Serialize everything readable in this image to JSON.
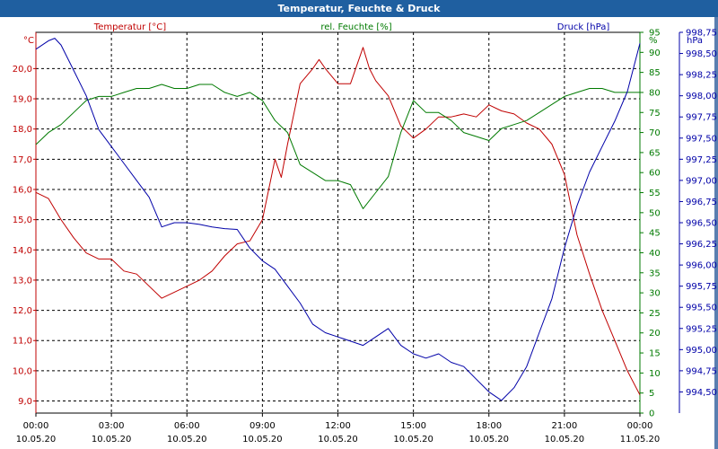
{
  "window": {
    "title": "Temperatur, Feuchte & Druck"
  },
  "colors": {
    "temperature": "#c00000",
    "humidity": "#007a00",
    "pressure": "#0000a8",
    "title_bar": "#1f5fa0",
    "grid": "#000000"
  },
  "chart_data": {
    "type": "line",
    "title": "Temperatur, Feuchte & Druck",
    "grid": true,
    "x_ticks": [
      {
        "time": "00:00",
        "date": "10.05.20"
      },
      {
        "time": "03:00",
        "date": "10.05.20"
      },
      {
        "time": "06:00",
        "date": "10.05.20"
      },
      {
        "time": "09:00",
        "date": "10.05.20"
      },
      {
        "time": "12:00",
        "date": "10.05.20"
      },
      {
        "time": "15:00",
        "date": "10.05.20"
      },
      {
        "time": "18:00",
        "date": "10.05.20"
      },
      {
        "time": "21:00",
        "date": "10.05.20"
      },
      {
        "time": "00:00",
        "date": "11.05.20"
      }
    ],
    "axes": {
      "left": {
        "unit": "°C",
        "label": "Temperatur [°C]",
        "range": [
          8.6,
          21.2
        ],
        "ticks": [
          "9,0",
          "10,0",
          "11,0",
          "12,0",
          "13,0",
          "14,0",
          "15,0",
          "16,0",
          "17,0",
          "18,0",
          "19,0",
          "20,0"
        ]
      },
      "middle": {
        "unit": "%",
        "label": "rel. Feuchte [%]",
        "range": [
          0,
          95
        ],
        "ticks": [
          "0",
          "5",
          "10",
          "15",
          "20",
          "25",
          "30",
          "35",
          "40",
          "45",
          "50",
          "55",
          "60",
          "65",
          "70",
          "75",
          "80",
          "85",
          "90",
          "95"
        ]
      },
      "right": {
        "unit": "hPa",
        "label": "Druck [hPa]",
        "range": [
          994.25,
          998.75
        ],
        "ticks": [
          "994,50",
          "994,75",
          "995,00",
          "995,25",
          "995,50",
          "995,75",
          "996,00",
          "996,25",
          "996,50",
          "996,75",
          "997,00",
          "997,25",
          "997,50",
          "997,75",
          "998,00",
          "998,25",
          "998,50",
          "998,75"
        ]
      }
    },
    "series": [
      {
        "name": "Temperatur [°C]",
        "axis": "left",
        "x_hours": [
          0,
          0.5,
          1,
          1.5,
          2,
          2.5,
          3,
          3.5,
          4,
          4.5,
          5,
          5.5,
          6,
          6.5,
          7,
          7.5,
          8,
          8.5,
          9,
          9.25,
          9.5,
          9.75,
          10,
          10.5,
          11,
          11.25,
          11.5,
          12,
          12.5,
          13,
          13.25,
          13.5,
          14,
          14.5,
          15,
          15.5,
          16,
          16.5,
          17,
          17.5,
          18,
          18.5,
          19,
          19.5,
          20,
          20.5,
          21,
          21.5,
          22,
          22.5,
          23,
          23.5,
          24
        ],
        "values": [
          15.9,
          15.7,
          15.0,
          14.4,
          13.9,
          13.7,
          13.7,
          13.3,
          13.2,
          12.8,
          12.4,
          12.6,
          12.8,
          13.0,
          13.3,
          13.8,
          14.2,
          14.3,
          15.0,
          16.0,
          17.0,
          16.4,
          17.5,
          19.5,
          20.0,
          20.3,
          20.0,
          19.5,
          19.5,
          20.7,
          20.0,
          19.6,
          19.1,
          18.1,
          17.7,
          18.0,
          18.4,
          18.4,
          18.5,
          18.4,
          18.8,
          18.6,
          18.5,
          18.2,
          18.0,
          17.5,
          16.5,
          14.5,
          13.2,
          12.0,
          11.0,
          10.0,
          9.2
        ]
      },
      {
        "name": "rel. Feuchte [%]",
        "axis": "middle",
        "x_hours": [
          0,
          0.5,
          1,
          1.5,
          2,
          2.5,
          3,
          3.5,
          4,
          4.5,
          5,
          5.5,
          6,
          6.5,
          7,
          7.5,
          8,
          8.5,
          9,
          9.5,
          10,
          10.5,
          11,
          11.5,
          12,
          12.5,
          13,
          13.5,
          14,
          14.5,
          15,
          15.5,
          16,
          16.5,
          17,
          17.5,
          18,
          18.5,
          19,
          19.5,
          20,
          20.5,
          21,
          21.5,
          22,
          22.5,
          23,
          23.5,
          24
        ],
        "values": [
          67,
          70,
          72,
          75,
          78,
          79,
          79,
          80,
          81,
          81,
          82,
          81,
          81,
          82,
          82,
          80,
          79,
          80,
          78,
          73,
          70,
          62,
          60,
          58,
          58,
          57,
          51,
          55,
          59,
          70,
          78,
          75,
          75,
          73,
          70,
          69,
          68,
          71,
          72,
          73,
          75,
          77,
          79,
          80,
          81,
          81,
          80,
          80,
          80
        ]
      },
      {
        "name": "Druck [hPa]",
        "axis": "right",
        "x_hours": [
          0,
          0.5,
          0.75,
          1,
          1.5,
          2,
          2.5,
          3,
          3.5,
          4,
          4.5,
          5,
          5.5,
          6,
          6.5,
          7,
          7.5,
          8,
          8.5,
          9,
          9.5,
          10,
          10.5,
          11,
          11.5,
          12,
          12.5,
          13,
          13.5,
          14,
          14.5,
          15,
          15.5,
          16,
          16.5,
          17,
          17.5,
          18,
          18.5,
          19,
          19.5,
          20,
          20.5,
          21,
          21.5,
          22,
          22.5,
          23,
          23.5,
          24
        ],
        "values": [
          998.55,
          998.65,
          998.68,
          998.6,
          998.3,
          998.0,
          997.6,
          997.4,
          997.2,
          997.0,
          996.8,
          996.45,
          996.5,
          996.5,
          996.48,
          996.45,
          996.43,
          996.42,
          996.2,
          996.05,
          995.95,
          995.75,
          995.55,
          995.3,
          995.2,
          995.15,
          995.1,
          995.05,
          995.15,
          995.25,
          995.05,
          994.95,
          994.9,
          994.95,
          994.85,
          994.8,
          994.65,
          994.5,
          994.4,
          994.55,
          994.8,
          995.2,
          995.6,
          996.2,
          996.7,
          997.1,
          997.4,
          997.7,
          998.05,
          998.62
        ]
      }
    ]
  }
}
